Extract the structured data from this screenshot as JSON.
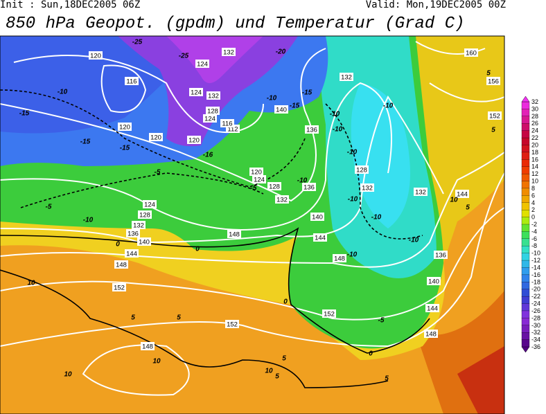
{
  "header": {
    "init": "Init : Sun,18DEC2005 06Z",
    "valid": "Valid: Mon,19DEC2005 00Z",
    "title": "850 hPa Geopot. (gpdm) und Temperatur (Grad C)"
  },
  "map": {
    "geopotential_labels": [
      120,
      116,
      124,
      132,
      124,
      132,
      128,
      124,
      112,
      116,
      120,
      120,
      120,
      120,
      124,
      128,
      132,
      136,
      124,
      128,
      132,
      136,
      140,
      144,
      148,
      152,
      148,
      144,
      140,
      148,
      152,
      152,
      148,
      136,
      140,
      132,
      128,
      132,
      132,
      144,
      136,
      140,
      144,
      148,
      152,
      156,
      160
    ],
    "temperature_labels": [
      -25,
      -20,
      -25,
      -10,
      -15,
      -15,
      -15,
      -10,
      -15,
      -15,
      -10,
      -10,
      -10,
      -5,
      -5,
      -10,
      -5,
      -10,
      -10,
      -10,
      -10,
      -10,
      -10,
      -5,
      0,
      0,
      0,
      0,
      5,
      5,
      10,
      10,
      10,
      10,
      5,
      5,
      5,
      10,
      5,
      5,
      5,
      -16
    ]
  },
  "colorbar": {
    "ticks": [
      32,
      30,
      28,
      26,
      24,
      22,
      20,
      18,
      16,
      14,
      12,
      10,
      8,
      6,
      4,
      2,
      0,
      -2,
      -4,
      -6,
      -8,
      -10,
      -12,
      -14,
      -16,
      -18,
      -20,
      -22,
      -24,
      -26,
      -28,
      -30,
      -32,
      -34,
      -36
    ]
  }
}
